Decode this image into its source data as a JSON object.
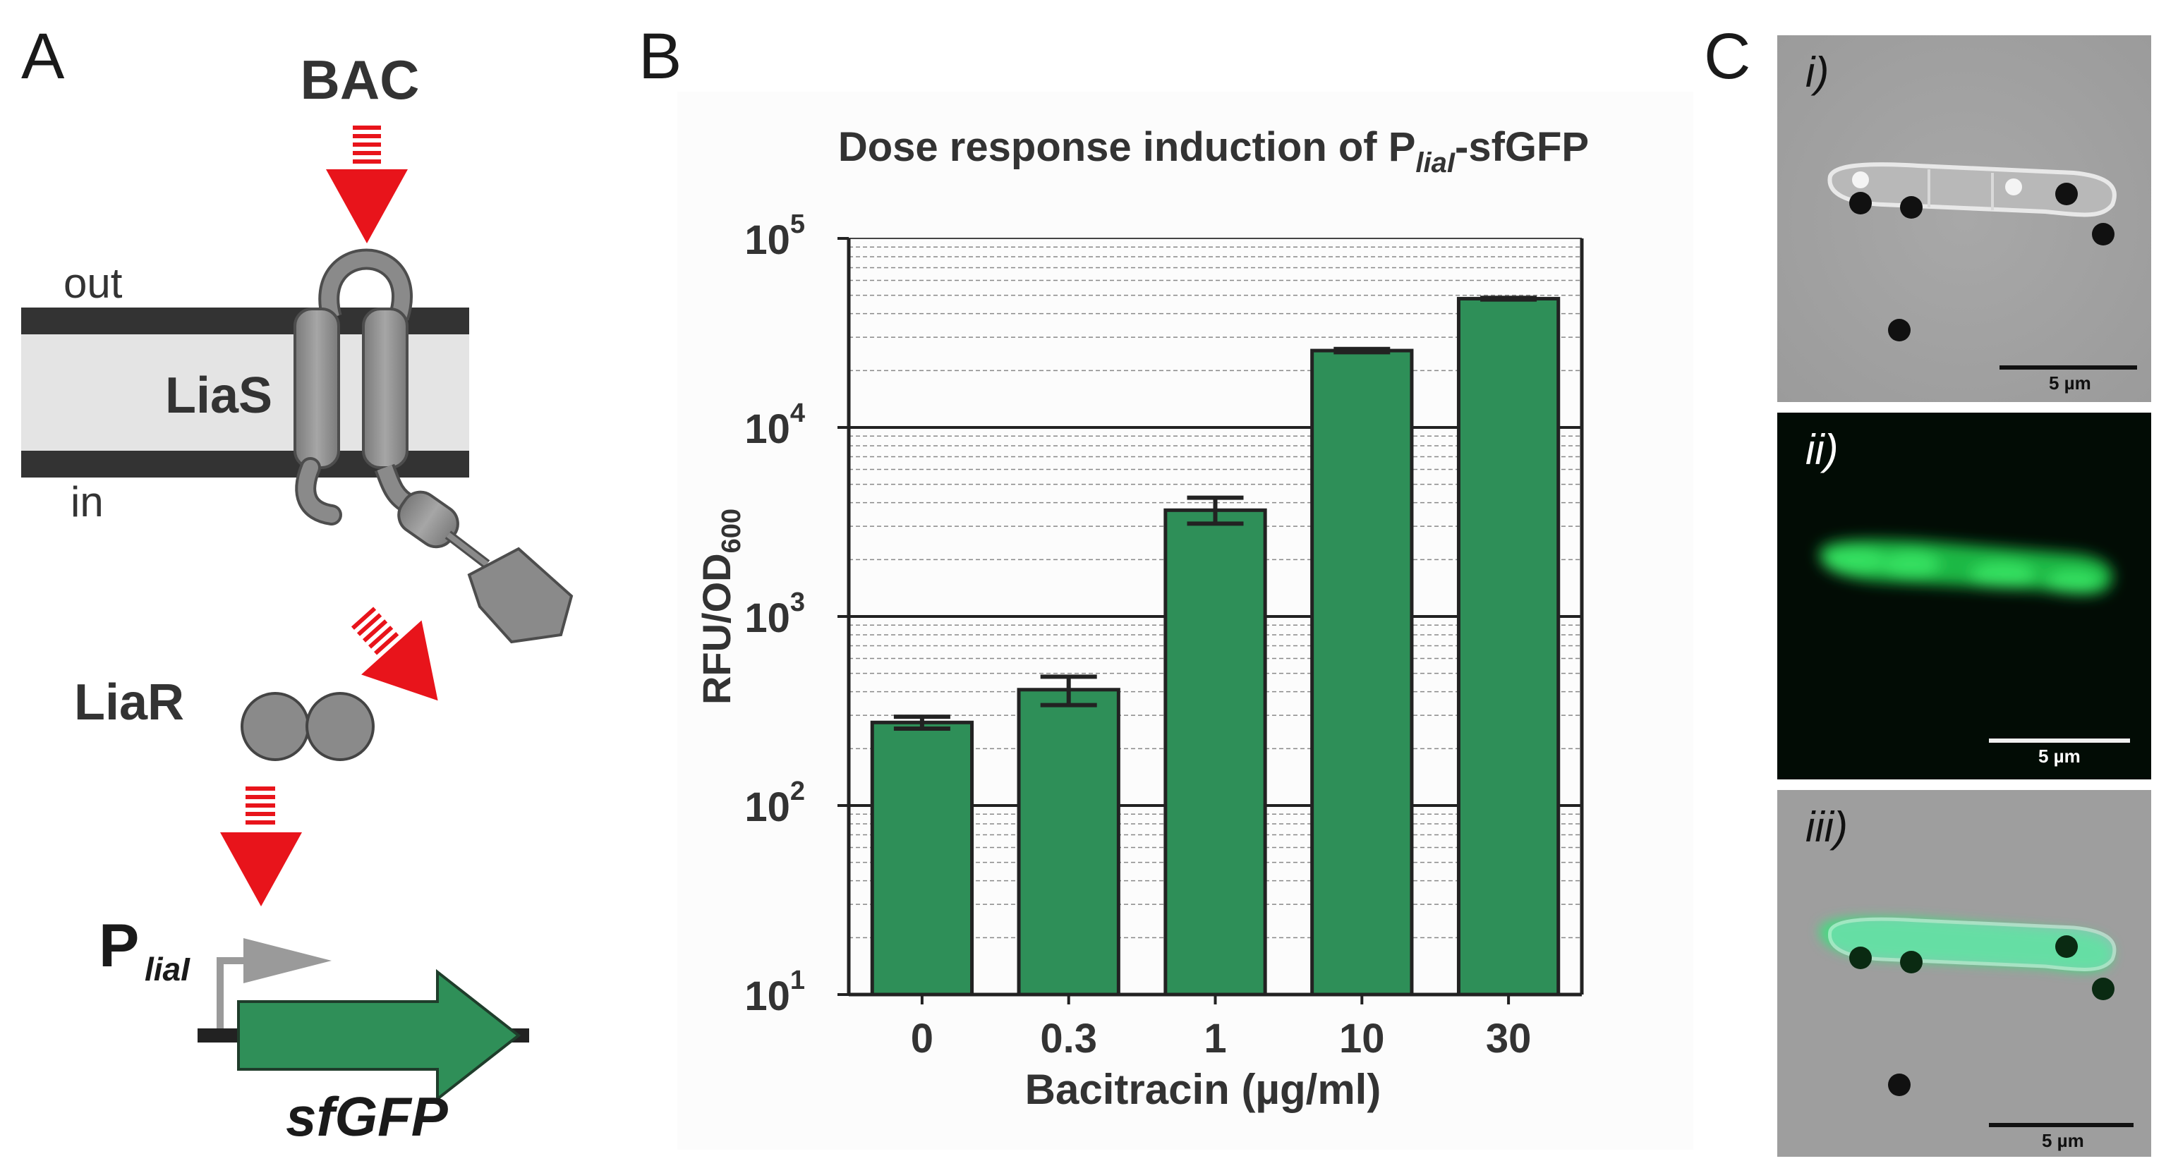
{
  "panels": {
    "A": {
      "letter": "A",
      "bac_label": "BAC",
      "out_label": "out",
      "in_label": "in",
      "sensor_label": "LiaS",
      "regulator_label": "LiaR",
      "promoter_label": "P",
      "promoter_sub": "liaI",
      "gene_label": "sfGFP",
      "colors": {
        "arrow": "#e8141b",
        "membrane": "#333333",
        "membrane_fill": "#e4e4e4",
        "protein": "#8a8a8a",
        "gene": "#2f8f58"
      }
    },
    "B": {
      "letter": "B",
      "title_main": "Dose response induction of P",
      "title_sub": "liaI",
      "title_end": "-sfGFP",
      "ylabel_main": "RFU/OD",
      "ylabel_sub": "600",
      "xlabel": "Bacitracin (µg/ml)"
    },
    "C": {
      "letter": "C",
      "images": [
        {
          "label": "i)",
          "scale": "5 µm"
        },
        {
          "label": "ii)",
          "scale": "5 µm"
        },
        {
          "label": "iii)",
          "scale": "5 µm"
        }
      ]
    }
  },
  "chart_data": {
    "type": "bar",
    "categories": [
      "0",
      "0.3",
      "1",
      "10",
      "30"
    ],
    "values": [
      275,
      410,
      3650,
      25500,
      48000
    ],
    "errors_low": [
      255,
      340,
      3100,
      25000,
      47500
    ],
    "errors_high": [
      295,
      480,
      4250,
      26000,
      48500
    ],
    "yscale": "log",
    "ylim": [
      10,
      100000
    ],
    "yticks": [
      {
        "base": "10",
        "exp": "1"
      },
      {
        "base": "10",
        "exp": "2"
      },
      {
        "base": "10",
        "exp": "3"
      },
      {
        "base": "10",
        "exp": "4"
      },
      {
        "base": "10",
        "exp": "5"
      }
    ],
    "grid": true,
    "bar_color": "#2e8f58"
  }
}
